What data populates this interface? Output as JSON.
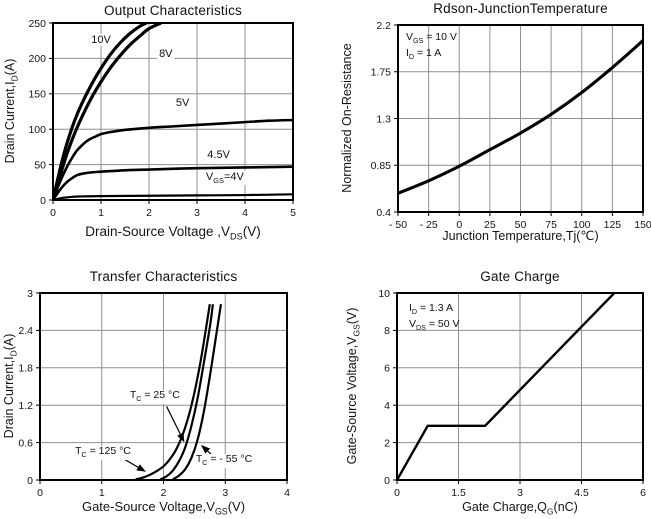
{
  "colors": {
    "curve": "#000000",
    "grid": "#8f8f8f",
    "border": "#000000",
    "background": "#ffffff",
    "text": "#111111"
  },
  "chart_data": [
    {
      "type": "line",
      "title": "Output Characteristics",
      "xlabel": "Drain-Source Voltage ,V~DS~(V)",
      "ylabel": "Drain Current,I~D~(A)",
      "xlim": [
        0,
        5
      ],
      "ylim": [
        0,
        250
      ],
      "grid": true,
      "xticks": {
        "values": [
          0,
          1,
          2,
          3,
          4,
          5
        ],
        "labels": [
          "0",
          "1",
          "2",
          "3",
          "4",
          "5"
        ]
      },
      "yticks": {
        "values": [
          0,
          50,
          100,
          150,
          200,
          250
        ],
        "labels": [
          "0",
          "50",
          "100",
          "150",
          "200",
          "250"
        ]
      },
      "series": [
        {
          "name": "VGS-10V",
          "width": 3.2,
          "points": [
            [
              0,
              0
            ],
            [
              0.05,
              15
            ],
            [
              0.1,
              30
            ],
            [
              0.2,
              58
            ],
            [
              0.3,
              82
            ],
            [
              0.45,
              112
            ],
            [
              0.6,
              136
            ],
            [
              0.8,
              163
            ],
            [
              1.0,
              186
            ],
            [
              1.2,
              206
            ],
            [
              1.4,
              222
            ],
            [
              1.6,
              235
            ],
            [
              1.8,
              245
            ],
            [
              1.95,
              250
            ]
          ]
        },
        {
          "name": "VGS-8V",
          "width": 3.2,
          "points": [
            [
              0,
              0
            ],
            [
              0.05,
              12
            ],
            [
              0.1,
              24
            ],
            [
              0.2,
              46
            ],
            [
              0.3,
              67
            ],
            [
              0.45,
              94
            ],
            [
              0.6,
              117
            ],
            [
              0.8,
              144
            ],
            [
              1.0,
              167
            ],
            [
              1.2,
              187
            ],
            [
              1.4,
              204
            ],
            [
              1.6,
              219
            ],
            [
              1.8,
              231
            ],
            [
              2.0,
              242
            ],
            [
              2.25,
              250
            ]
          ]
        },
        {
          "name": "VGS-5V",
          "width": 2.6,
          "points": [
            [
              0,
              0
            ],
            [
              0.1,
              18
            ],
            [
              0.2,
              34
            ],
            [
              0.3,
              48
            ],
            [
              0.4,
              60
            ],
            [
              0.5,
              70
            ],
            [
              0.6,
              77
            ],
            [
              0.7,
              83
            ],
            [
              0.8,
              87
            ],
            [
              0.9,
              90
            ],
            [
              1.0,
              93
            ],
            [
              1.2,
              96
            ],
            [
              1.5,
              99
            ],
            [
              2.0,
              102
            ],
            [
              2.5,
              104
            ],
            [
              3.0,
              106
            ],
            [
              3.5,
              108
            ],
            [
              4.0,
              110
            ],
            [
              4.5,
              112
            ],
            [
              5.0,
              113
            ]
          ]
        },
        {
          "name": "VGS-4.5V",
          "width": 2.6,
          "points": [
            [
              0,
              0
            ],
            [
              0.1,
              10
            ],
            [
              0.2,
              19
            ],
            [
              0.3,
              26
            ],
            [
              0.4,
              31
            ],
            [
              0.5,
              35
            ],
            [
              0.6,
              37
            ],
            [
              0.8,
              39
            ],
            [
              1.0,
              40
            ],
            [
              1.5,
              42
            ],
            [
              2.0,
              43
            ],
            [
              3.0,
              45
            ],
            [
              4.0,
              46
            ],
            [
              5.0,
              47
            ]
          ]
        },
        {
          "name": "VGS-4V",
          "width": 2.2,
          "points": [
            [
              0,
              0
            ],
            [
              0.1,
              1.5
            ],
            [
              0.2,
              3
            ],
            [
              0.4,
              4.5
            ],
            [
              0.6,
              5
            ],
            [
              1.0,
              5.5
            ],
            [
              2.0,
              6
            ],
            [
              3.0,
              6.5
            ],
            [
              4.0,
              7
            ],
            [
              5.0,
              8
            ]
          ]
        }
      ],
      "curve_labels": [
        {
          "text": "10V",
          "x": 1.0,
          "y": 226
        },
        {
          "text": "8V",
          "x": 2.35,
          "y": 206
        },
        {
          "text": "5V",
          "x": 2.7,
          "y": 137
        },
        {
          "text": "4.5V",
          "x": 3.45,
          "y": 63
        },
        {
          "text": "V~GS~=4V",
          "x": 3.58,
          "y": 31
        }
      ],
      "annotations": [],
      "arrows": []
    },
    {
      "type": "line",
      "title": "Rdson-JunctionTemperature",
      "xlabel": "Junction Temperature,Tj(℃)",
      "ylabel": "Normalized On-Resistance",
      "xlim": [
        -50,
        150
      ],
      "ylim": [
        0.4,
        2.2
      ],
      "grid": true,
      "xticks": {
        "values": [
          -50,
          -25,
          0,
          25,
          50,
          75,
          100,
          125,
          150
        ],
        "labels": [
          "- 50",
          "- 25",
          "0",
          "25",
          "50",
          "75",
          "100",
          "125",
          "150"
        ]
      },
      "yticks": {
        "values": [
          0.4,
          0.85,
          1.3,
          1.75,
          2.2
        ],
        "labels": [
          "0.4",
          "0.85",
          "1.3",
          "1.75",
          "2.2"
        ]
      },
      "series": [
        {
          "name": "normalized-rdson",
          "width": 3.1,
          "points": [
            [
              -50,
              0.58
            ],
            [
              -25,
              0.7
            ],
            [
              0,
              0.84
            ],
            [
              25,
              1.0
            ],
            [
              50,
              1.16
            ],
            [
              75,
              1.34
            ],
            [
              100,
              1.55
            ],
            [
              125,
              1.79
            ],
            [
              150,
              2.05
            ]
          ]
        }
      ],
      "curve_labels": [],
      "annotations": [
        {
          "lines": [
            "V~GS~ = 10 V",
            "I~D~ = 1 A"
          ],
          "px": 8,
          "py": 5
        }
      ],
      "arrows": []
    },
    {
      "type": "line",
      "title": "Transfer Characteristics",
      "xlabel": "Gate-Source Voltage,V~GS~(V)",
      "ylabel": "Drain Current,I~D~(A)",
      "xlim": [
        0,
        4
      ],
      "ylim": [
        0,
        3
      ],
      "grid": true,
      "xticks": {
        "values": [
          0,
          1,
          2,
          3,
          4
        ],
        "labels": [
          "0",
          "1",
          "2",
          "3",
          "4"
        ]
      },
      "yticks": {
        "values": [
          0,
          0.6,
          1.2,
          1.8,
          2.4,
          3
        ],
        "labels": [
          "0",
          "0.6",
          "1.2",
          "1.8",
          "2.4",
          "3"
        ]
      },
      "series": [
        {
          "name": "tc-125C",
          "width": 2.2,
          "points": [
            [
              1.55,
              0.01
            ],
            [
              1.7,
              0.05
            ],
            [
              1.85,
              0.12
            ],
            [
              2.0,
              0.22
            ],
            [
              2.1,
              0.33
            ],
            [
              2.2,
              0.48
            ],
            [
              2.3,
              0.7
            ],
            [
              2.4,
              1.0
            ],
            [
              2.5,
              1.4
            ],
            [
              2.6,
              1.9
            ],
            [
              2.68,
              2.38
            ],
            [
              2.75,
              2.82
            ]
          ]
        },
        {
          "name": "tc-25C",
          "width": 2.2,
          "points": [
            [
              1.95,
              0.01
            ],
            [
              2.05,
              0.06
            ],
            [
              2.15,
              0.15
            ],
            [
              2.25,
              0.3
            ],
            [
              2.35,
              0.52
            ],
            [
              2.45,
              0.86
            ],
            [
              2.55,
              1.3
            ],
            [
              2.65,
              1.86
            ],
            [
              2.75,
              2.45
            ],
            [
              2.8,
              2.82
            ]
          ]
        },
        {
          "name": "tc-m55C",
          "width": 2.2,
          "points": [
            [
              2.15,
              0.01
            ],
            [
              2.25,
              0.07
            ],
            [
              2.35,
              0.17
            ],
            [
              2.45,
              0.35
            ],
            [
              2.55,
              0.64
            ],
            [
              2.65,
              1.08
            ],
            [
              2.75,
              1.66
            ],
            [
              2.85,
              2.3
            ],
            [
              2.93,
              2.82
            ]
          ]
        }
      ],
      "curve_labels": [
        {
          "text": "T~C~ = 25 °C",
          "x": 1.86,
          "y": 1.33
        },
        {
          "text": "T~C~ = 125 °C",
          "x": 1.02,
          "y": 0.44
        },
        {
          "text": "T~C~ = - 55 °C",
          "x": 2.98,
          "y": 0.3
        }
      ],
      "annotations": [],
      "arrows": [
        {
          "from": [
            2.05,
            1.18
          ],
          "to": [
            2.33,
            0.62
          ]
        },
        {
          "from": [
            1.3,
            0.37
          ],
          "to": [
            1.7,
            0.14
          ]
        },
        {
          "from": [
            2.83,
            0.36
          ],
          "to": [
            2.62,
            0.55
          ]
        }
      ]
    },
    {
      "type": "line",
      "title": "Gate Charge",
      "xlabel": "Gate Charge,Q~G~(nC)",
      "ylabel": "Gate-Source Voltage,V~GS~(V)",
      "xlim": [
        0,
        6
      ],
      "ylim": [
        0,
        10
      ],
      "grid": true,
      "xticks": {
        "values": [
          0,
          1.5,
          3,
          4.5,
          6
        ],
        "labels": [
          "0",
          "1.5",
          "3",
          "4.5",
          "6"
        ]
      },
      "yticks": {
        "values": [
          0,
          2,
          4,
          6,
          8,
          10
        ],
        "labels": [
          "0",
          "2",
          "4",
          "6",
          "8",
          "10"
        ]
      },
      "series": [
        {
          "name": "gate-charge",
          "width": 2.4,
          "straight": true,
          "points": [
            [
              0,
              0
            ],
            [
              0.75,
              2.9
            ],
            [
              2.15,
              2.9
            ],
            [
              5.3,
              10
            ]
          ]
        }
      ],
      "curve_labels": [],
      "annotations": [
        {
          "lines": [
            "I~D~ = 1.3 A",
            "V~DS~ = 50 V"
          ],
          "px": 12,
          "py": 8
        }
      ],
      "arrows": []
    }
  ]
}
